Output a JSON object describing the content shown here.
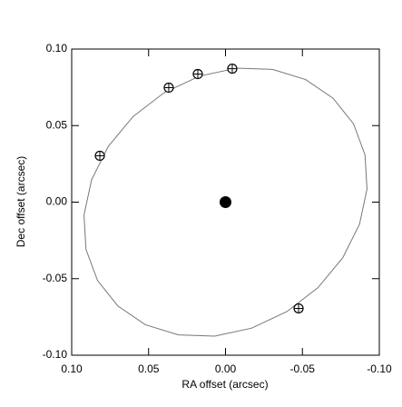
{
  "chart_data": {
    "type": "scatter",
    "x_label": "RA offset (arcsec)",
    "y_label": "Dec offset (arcsec)",
    "xlim": [
      0.1,
      -0.1
    ],
    "ylim": [
      -0.1,
      0.1
    ],
    "xticks": [
      {
        "value": 0.1,
        "label": "0.10"
      },
      {
        "value": 0.05,
        "label": "0.05"
      },
      {
        "value": 0,
        "label": "0.00"
      },
      {
        "value": -0.05,
        "label": "-0.05"
      },
      {
        "value": -0.1,
        "label": "-0.10"
      }
    ],
    "yticks": [
      {
        "value": -0.1,
        "label": "-0.10"
      },
      {
        "value": -0.05,
        "label": "-0.05"
      },
      {
        "value": 0,
        "label": "0.00"
      },
      {
        "value": 0.05,
        "label": "0.05"
      },
      {
        "value": 0.1,
        "label": "0.10"
      }
    ],
    "series": [
      {
        "style": "line",
        "color": "#777777",
        "x": [
          0.092,
          0.0871,
          0.0762,
          0.0601,
          0.0399,
          0.017,
          -0.007,
          -0.0306,
          -0.0521,
          -0.0699,
          -0.0832,
          -0.0907,
          -0.092,
          -0.0871,
          -0.0762,
          -0.0601,
          -0.0399,
          -0.017,
          0.007,
          0.0306,
          0.0521,
          0.0699,
          0.0832,
          0.0907,
          0.092
        ],
        "values": [
          -0.0085,
          0.0145,
          0.0364,
          0.0559,
          0.0715,
          0.0823,
          0.0875,
          0.0867,
          0.0801,
          0.0679,
          0.0512,
          0.0309,
          0.0085,
          -0.0145,
          -0.0364,
          -0.0559,
          -0.0715,
          -0.0823,
          -0.0875,
          -0.0867,
          -0.0801,
          -0.0679,
          -0.0512,
          -0.0309,
          -0.0085
        ]
      },
      {
        "style": "open",
        "color": "#000000",
        "x": [
          -0.0044,
          0.018,
          0.0369,
          0.0817,
          -0.0475
        ],
        "values": [
          0.0872,
          0.0837,
          0.0748,
          0.0303,
          -0.0694
        ]
      },
      {
        "style": "filled",
        "color": "#000000",
        "x": [
          0
        ],
        "values": [
          0
        ]
      }
    ]
  }
}
